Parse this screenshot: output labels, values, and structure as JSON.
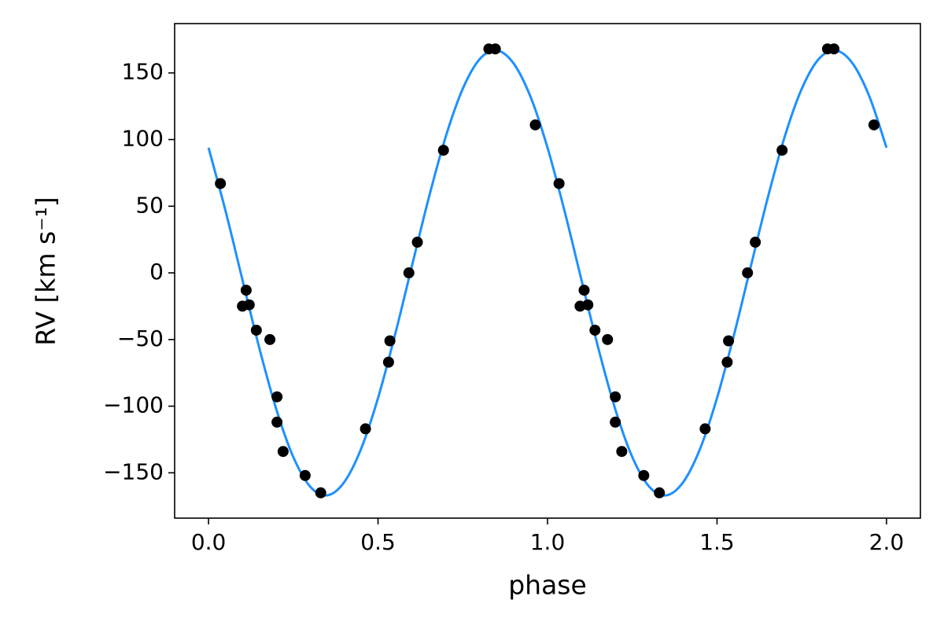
{
  "chart_data": {
    "type": "scatter",
    "xlabel": "phase",
    "ylabel": "RV [km s⁻¹]",
    "xlim": [
      -0.1,
      2.1
    ],
    "ylim": [
      -184,
      187
    ],
    "xticks": [
      {
        "value": 0,
        "label": "0.0"
      },
      {
        "value": 0.5,
        "label": "0.5"
      },
      {
        "value": 1,
        "label": "1.0"
      },
      {
        "value": 1.5,
        "label": "1.5"
      },
      {
        "value": 2,
        "label": "2.0"
      }
    ],
    "yticks": [
      {
        "value": -150,
        "label": "−150"
      },
      {
        "value": -100,
        "label": "−100"
      },
      {
        "value": -50,
        "label": "−50"
      },
      0,
      50,
      100,
      150
    ],
    "grid": false,
    "series": [
      {
        "type": "line",
        "color": "#1e90ff",
        "x": [
          0,
          0.05,
          0.1,
          0.15,
          0.2,
          0.25,
          0.3,
          0.35,
          0.4,
          0.45,
          0.5,
          0.55,
          0.6,
          0.65,
          0.7,
          0.75,
          0.8,
          0.85,
          0.9,
          0.95,
          1,
          1.05,
          1.1,
          1.15,
          1.2,
          1.25,
          1.3,
          1.35,
          1.4,
          1.45,
          1.5,
          1.55,
          1.6,
          1.65,
          1.7,
          1.75,
          1.8,
          1.85,
          1.9,
          1.95,
          2
        ],
        "values": [
          93.9,
          46.6,
          -5.2,
          -56.6,
          -102.4,
          -138.1,
          -160.4,
          -166.9,
          -157.1,
          -132.0,
          -93.9,
          -46.6,
          5.2,
          56.6,
          102.4,
          138.1,
          160.4,
          166.9,
          157.1,
          132.0,
          93.9,
          46.6,
          -5.2,
          -56.6,
          -102.4,
          -138.1,
          -160.4,
          -166.9,
          -157.1,
          -132.0,
          -93.9,
          -46.6,
          5.2,
          56.6,
          102.4,
          138.1,
          160.4,
          166.9,
          157.1,
          132.0,
          93.9
        ]
      },
      {
        "type": "scatter",
        "color": "#000000",
        "x": [
          0.035,
          0.1,
          0.111,
          0.12,
          0.141,
          0.181,
          0.202,
          0.202,
          0.22,
          0.285,
          0.331,
          0.463,
          0.531,
          0.535,
          0.591,
          0.616,
          0.693,
          0.827,
          0.846,
          0.964,
          1.034,
          1.096,
          1.108,
          1.119,
          1.14,
          1.177,
          1.2,
          1.2,
          1.219,
          1.284,
          1.33,
          1.465,
          1.53,
          1.534,
          1.59,
          1.613,
          1.692,
          1.826,
          1.845,
          1.963
        ],
        "values": [
          67,
          -25,
          -13,
          -24,
          -43,
          -50,
          -93,
          -112,
          -134,
          -152,
          -165,
          -117,
          -67,
          -51,
          0,
          23,
          92,
          168,
          168,
          111,
          67,
          -25,
          -13,
          -24,
          -43,
          -50,
          -93,
          -112,
          -134,
          -152,
          -165,
          -117,
          -67,
          -51,
          0,
          23,
          92,
          168,
          168,
          111
        ]
      }
    ]
  }
}
